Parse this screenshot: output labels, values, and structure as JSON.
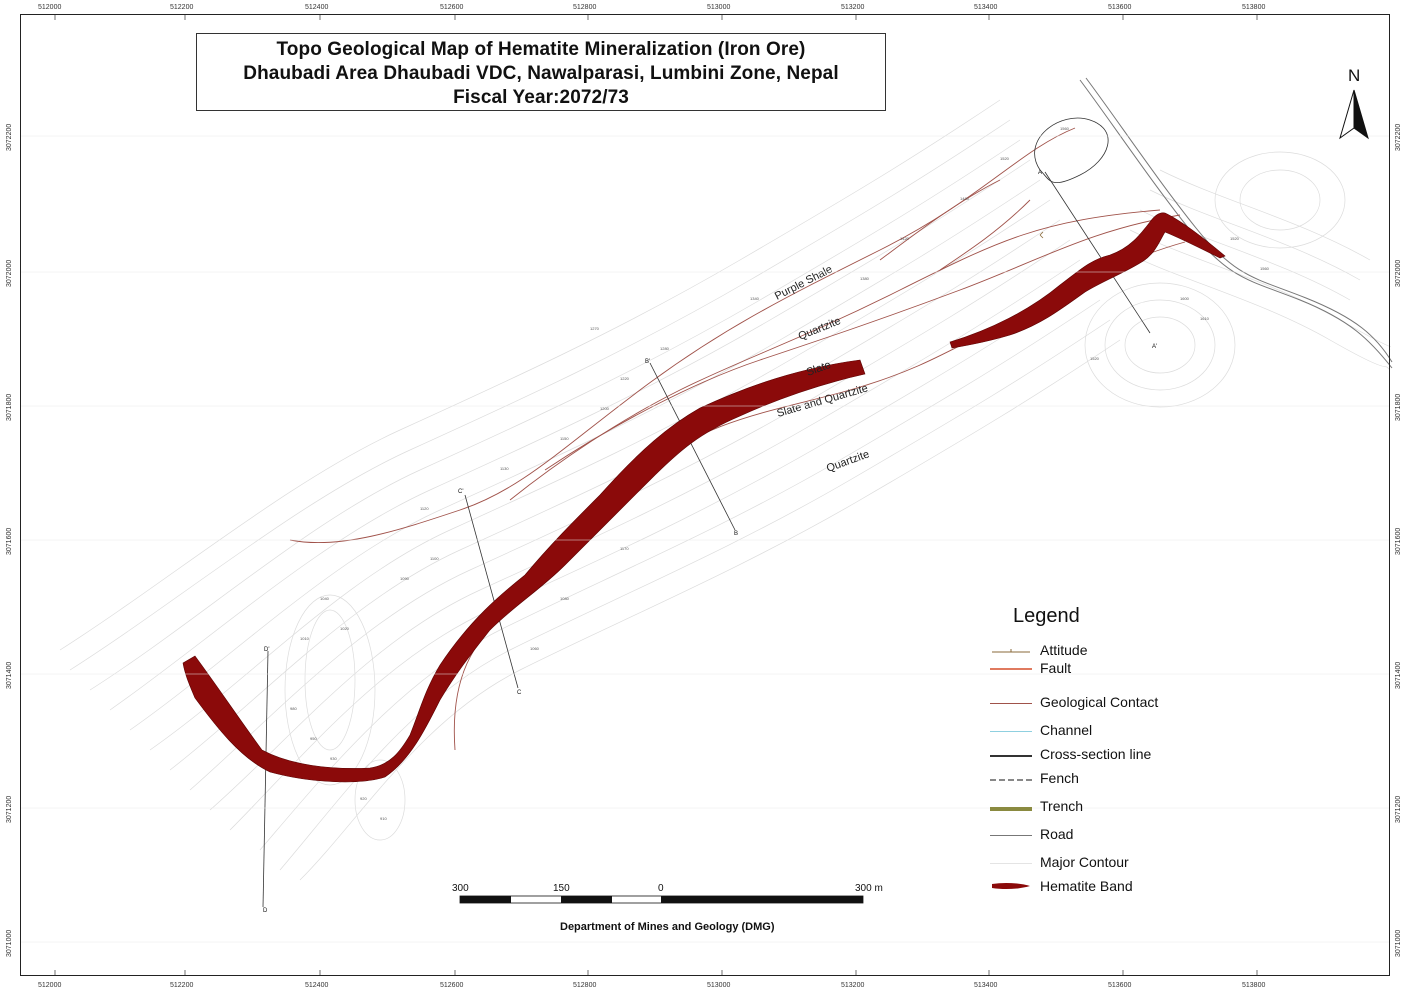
{
  "title": {
    "line1": "Topo Geological Map of Hematite Mineralization (Iron Ore)",
    "line2": "Dhaubadi Area Dhaubadi VDC, Nawalparasi, Lumbini Zone, Nepal",
    "line3": "Fiscal Year:2072/73"
  },
  "north_label": "N",
  "x_ticks": [
    "512000",
    "512200",
    "512400",
    "512600",
    "512800",
    "513000",
    "513200",
    "513400",
    "513600",
    "513800"
  ],
  "y_ticks": [
    "3072200",
    "3072000",
    "3071800",
    "3071600",
    "3071400",
    "3071200",
    "3071000"
  ],
  "geology_labels": [
    {
      "text": "Purple Shale",
      "name": "purple-shale-label"
    },
    {
      "text": "Quartzite",
      "name": "quartzite-label-upper"
    },
    {
      "text": "Slate",
      "name": "slate-label"
    },
    {
      "text": "Slate and Quartzite",
      "name": "slate-and-quartzite-label"
    },
    {
      "text": "Quartzite",
      "name": "quartzite-label-lower"
    }
  ],
  "section_points": [
    "A",
    "A'",
    "B",
    "B'",
    "C",
    "C'",
    "D",
    "D'"
  ],
  "legend": {
    "title": "Legend",
    "items": [
      {
        "label": "Attitude",
        "color": "#8a6a3a",
        "type": "attitude"
      },
      {
        "label": "Fault",
        "color": "#e07a5f",
        "type": "line"
      },
      {
        "label": "Geological Contact",
        "color": "#a0524a",
        "type": "line"
      },
      {
        "label": "Channel",
        "color": "#8fd0e0",
        "type": "line"
      },
      {
        "label": "Cross-section line",
        "color": "#333333",
        "type": "line"
      },
      {
        "label": "Fench",
        "color": "#888888",
        "type": "dashed"
      },
      {
        "label": "Trench",
        "color": "#8a8a40",
        "type": "thick"
      },
      {
        "label": "Road",
        "color": "#777777",
        "type": "line"
      },
      {
        "label": "Major Contour",
        "color": "#e4e4e4",
        "type": "line"
      },
      {
        "label": "Hematite Band",
        "color": "#8b0a0a",
        "type": "band"
      }
    ]
  },
  "scale": {
    "labels": [
      "300",
      "150",
      "0",
      "300 m"
    ]
  },
  "credit": "Department of Mines and Geology (DMG)",
  "colors": {
    "hematite": "#8b0a0a",
    "contact": "#a0524a",
    "contour": "#dcdcdc",
    "road": "#777777",
    "section": "#333333"
  }
}
